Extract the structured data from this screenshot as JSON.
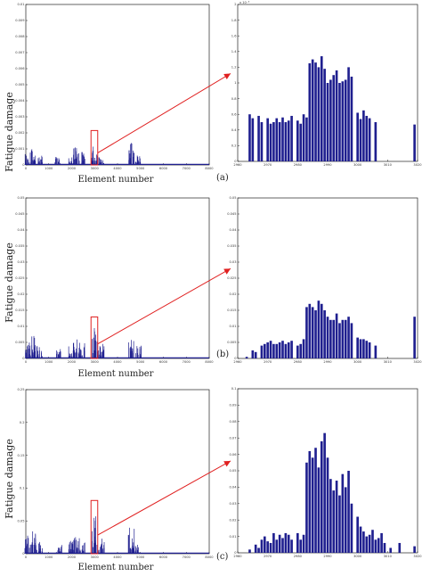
{
  "figure": {
    "ylabel": "Fatigue damage",
    "xlabel": "Element number",
    "panel_labels": [
      "(a)",
      "(b)",
      "(c)"
    ]
  },
  "colors": {
    "bar": "#1f1f8f",
    "highlight": "#e02020",
    "axis": "#222222"
  },
  "chart_data": [
    {
      "panel": "(a)",
      "view": "full",
      "type": "bar",
      "ylabel": "Fatigue damage",
      "xlabel": "Element number",
      "xlim": [
        0,
        8000
      ],
      "ylim": [
        0,
        0.01
      ],
      "grid": false,
      "x_ticks": [
        "0",
        "1000",
        "2000",
        "3000",
        "4000",
        "5000",
        "6000",
        "7000",
        "8000"
      ],
      "y_ticks": [
        "0",
        "0.001",
        "0.002",
        "0.003",
        "0.004",
        "0.005",
        "0.006",
        "0.007",
        "0.008",
        "0.009",
        "0.01"
      ],
      "peaks": [
        {
          "x": 80,
          "value": 0.0008
        },
        {
          "x": 350,
          "value": 0.001
        },
        {
          "x": 600,
          "value": 0.0006
        },
        {
          "x": 1400,
          "value": 0.0005
        },
        {
          "x": 2000,
          "value": 0.0006
        },
        {
          "x": 2200,
          "value": 0.0012
        },
        {
          "x": 2450,
          "value": 0.0008
        },
        {
          "x": 2990,
          "value": 0.0013
        },
        {
          "x": 3300,
          "value": 0.0007
        },
        {
          "x": 4600,
          "value": 0.0014
        },
        {
          "x": 4900,
          "value": 0.0006
        }
      ],
      "highlight_range": [
        2960,
        3020
      ]
    },
    {
      "panel": "(a)",
      "view": "zoom",
      "type": "bar",
      "exponent_label": "x 10⁻³",
      "xlim": [
        2960,
        3020
      ],
      "ylim": [
        0,
        2.0
      ],
      "x_ticks": [
        "2960",
        "2970",
        "2980",
        "2990",
        "3000",
        "3010",
        "3020"
      ],
      "y_ticks": [
        "0",
        "0.2",
        "0.4",
        "0.6",
        "0.8",
        "1",
        "1.2",
        "1.4",
        "1.6",
        "1.8",
        "2"
      ],
      "x": [
        2964,
        2965,
        2967,
        2968,
        2970,
        2971,
        2972,
        2973,
        2974,
        2975,
        2976,
        2977,
        2978,
        2980,
        2981,
        2982,
        2983,
        2984,
        2985,
        2986,
        2987,
        2988,
        2989,
        2990,
        2991,
        2992,
        2993,
        2994,
        2995,
        2996,
        2997,
        2998,
        3000,
        3001,
        3002,
        3003,
        3004,
        3006,
        3019
      ],
      "values": [
        0.6,
        0.55,
        0.58,
        0.5,
        0.55,
        0.48,
        0.5,
        0.55,
        0.5,
        0.56,
        0.5,
        0.52,
        0.58,
        0.52,
        0.48,
        0.6,
        0.56,
        1.25,
        1.3,
        1.26,
        1.2,
        1.34,
        1.18,
        1.0,
        1.04,
        1.1,
        1.16,
        1.0,
        1.02,
        1.04,
        1.2,
        1.08,
        0.62,
        0.54,
        0.65,
        0.58,
        0.55,
        0.5,
        0.47
      ]
    },
    {
      "panel": "(b)",
      "view": "full",
      "type": "bar",
      "ylabel": "Fatigue damage",
      "xlabel": "Element number",
      "xlim": [
        0,
        8000
      ],
      "ylim": [
        0,
        0.05
      ],
      "grid": false,
      "x_ticks": [
        "0",
        "1000",
        "2000",
        "3000",
        "4000",
        "5000",
        "6000",
        "7000",
        "8000"
      ],
      "y_ticks": [
        "0",
        "0.005",
        "0.01",
        "0.015",
        "0.02",
        "0.025",
        "0.03",
        "0.035",
        "0.04",
        "0.045",
        "0.05"
      ],
      "peaks": [
        {
          "x": 80,
          "value": 0.005
        },
        {
          "x": 350,
          "value": 0.007
        },
        {
          "x": 600,
          "value": 0.004
        },
        {
          "x": 1450,
          "value": 0.003
        },
        {
          "x": 2000,
          "value": 0.004
        },
        {
          "x": 2200,
          "value": 0.006
        },
        {
          "x": 2450,
          "value": 0.005
        },
        {
          "x": 2990,
          "value": 0.009
        },
        {
          "x": 3300,
          "value": 0.005
        },
        {
          "x": 4600,
          "value": 0.008
        },
        {
          "x": 4900,
          "value": 0.004
        }
      ],
      "highlight_range": [
        2960,
        3020
      ]
    },
    {
      "panel": "(b)",
      "view": "zoom",
      "type": "bar",
      "xlim": [
        2960,
        3020
      ],
      "ylim": [
        0,
        0.05
      ],
      "x_ticks": [
        "2960",
        "2970",
        "2980",
        "2990",
        "3000",
        "3010",
        "3020"
      ],
      "y_ticks": [
        "0",
        "0.005",
        "0.01",
        "0.015",
        "0.02",
        "0.025",
        "0.03",
        "0.035",
        "0.04",
        "0.045",
        "0.05"
      ],
      "x": [
        2963,
        2965,
        2966,
        2968,
        2969,
        2970,
        2971,
        2972,
        2973,
        2974,
        2975,
        2976,
        2977,
        2978,
        2980,
        2981,
        2982,
        2983,
        2984,
        2985,
        2986,
        2987,
        2988,
        2989,
        2990,
        2991,
        2992,
        2993,
        2994,
        2995,
        2996,
        2997,
        2998,
        3000,
        3001,
        3002,
        3003,
        3004,
        3006,
        3019
      ],
      "values": [
        0.0005,
        0.0025,
        0.002,
        0.004,
        0.0045,
        0.005,
        0.0055,
        0.0045,
        0.0045,
        0.005,
        0.0055,
        0.0045,
        0.005,
        0.0055,
        0.004,
        0.0045,
        0.006,
        0.016,
        0.017,
        0.016,
        0.015,
        0.018,
        0.017,
        0.015,
        0.013,
        0.012,
        0.012,
        0.014,
        0.011,
        0.012,
        0.012,
        0.013,
        0.011,
        0.0065,
        0.006,
        0.006,
        0.0055,
        0.005,
        0.004,
        0.013
      ]
    },
    {
      "panel": "(c)",
      "view": "full",
      "type": "bar",
      "ylabel": "Fatigue damage",
      "xlabel": "Element number",
      "xlim": [
        0,
        8000
      ],
      "ylim": [
        0,
        0.25
      ],
      "grid": false,
      "x_ticks": [
        "0",
        "1000",
        "2000",
        "3000",
        "4000",
        "5000",
        "6000",
        "7000",
        "8000"
      ],
      "y_ticks": [
        "0",
        "0.05",
        "0.1",
        "0.15",
        "0.2",
        "0.25"
      ],
      "peaks": [
        {
          "x": 80,
          "value": 0.03
        },
        {
          "x": 350,
          "value": 0.04
        },
        {
          "x": 600,
          "value": 0.02
        },
        {
          "x": 1450,
          "value": 0.015
        },
        {
          "x": 2000,
          "value": 0.02
        },
        {
          "x": 2200,
          "value": 0.03
        },
        {
          "x": 2450,
          "value": 0.025
        },
        {
          "x": 2990,
          "value": 0.06
        },
        {
          "x": 3300,
          "value": 0.025
        },
        {
          "x": 4600,
          "value": 0.04
        },
        {
          "x": 4900,
          "value": 0.015
        }
      ],
      "highlight_range": [
        2960,
        3020
      ]
    },
    {
      "panel": "(c)",
      "view": "zoom",
      "type": "bar",
      "xlim": [
        2960,
        3020
      ],
      "ylim": [
        0,
        0.1
      ],
      "x_ticks": [
        "2960",
        "2970",
        "2980",
        "2990",
        "3000",
        "3010",
        "3020"
      ],
      "y_ticks": [
        "0",
        "0.01",
        "0.02",
        "0.03",
        "0.04",
        "0.05",
        "0.06",
        "0.07",
        "0.08",
        "0.09",
        "0.1"
      ],
      "x": [
        2964,
        2966,
        2967,
        2968,
        2969,
        2970,
        2971,
        2972,
        2973,
        2974,
        2975,
        2976,
        2977,
        2978,
        2980,
        2981,
        2982,
        2983,
        2984,
        2985,
        2986,
        2987,
        2988,
        2989,
        2990,
        2991,
        2992,
        2993,
        2994,
        2995,
        2996,
        2997,
        2998,
        3000,
        3001,
        3002,
        3003,
        3004,
        3005,
        3006,
        3007,
        3008,
        3009,
        3011,
        3014,
        3019
      ],
      "values": [
        0.002,
        0.005,
        0.003,
        0.008,
        0.01,
        0.007,
        0.006,
        0.012,
        0.008,
        0.011,
        0.009,
        0.012,
        0.011,
        0.008,
        0.012,
        0.008,
        0.011,
        0.055,
        0.062,
        0.058,
        0.064,
        0.052,
        0.068,
        0.073,
        0.058,
        0.045,
        0.038,
        0.044,
        0.035,
        0.048,
        0.04,
        0.05,
        0.03,
        0.022,
        0.016,
        0.013,
        0.01,
        0.011,
        0.014,
        0.008,
        0.009,
        0.012,
        0.006,
        0.003,
        0.006,
        0.004
      ]
    }
  ]
}
